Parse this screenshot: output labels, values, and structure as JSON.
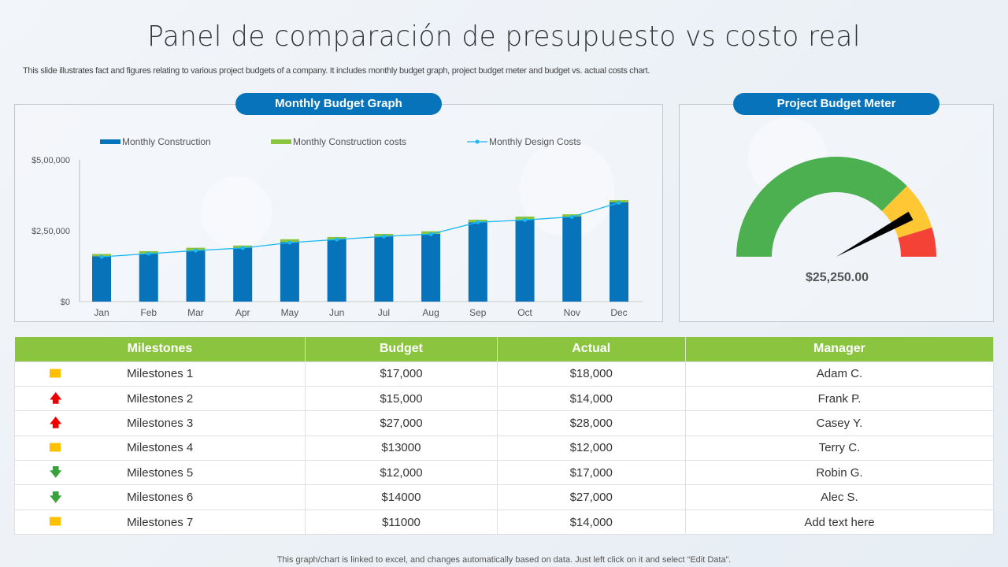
{
  "title": "Panel de comparación de presupuesto vs costo real",
  "subtitle": "This slide illustrates fact and figures relating to various project budgets of a company. It includes monthly budget graph, project budget meter and budget vs.  actual costs chart.",
  "budget_graph": {
    "header": "Monthly Budget Graph"
  },
  "meter": {
    "header": "Project Budget Meter",
    "value_label": "$25,250.00",
    "needle_fraction": 0.84,
    "colors": {
      "green": "#4caf50",
      "yellow": "#ffc733",
      "red": "#f44336"
    }
  },
  "chart_data": {
    "type": "bar",
    "categories": [
      "Jan",
      "Feb",
      "Mar",
      "Apr",
      "May",
      "Jun",
      "Jul",
      "Aug",
      "Sep",
      "Oct",
      "Nov",
      "Dec"
    ],
    "y_ticks": [
      "$0",
      "$2,50,000",
      "$5,00,000"
    ],
    "ylim": [
      0,
      500000
    ],
    "legend_position": "top",
    "series": [
      {
        "name": "Monthly Construction",
        "kind": "stacked-bar",
        "color": "#0773bb",
        "values": [
          160000,
          169000,
          180000,
          190000,
          210000,
          220000,
          230000,
          239000,
          280000,
          289000,
          300000,
          350000
        ]
      },
      {
        "name": "Monthly Construction costs",
        "kind": "stacked-bar",
        "color": "#8bc53f",
        "values": [
          8000,
          9000,
          10000,
          8000,
          10000,
          8000,
          9000,
          9000,
          9000,
          11000,
          8000,
          8000
        ]
      },
      {
        "name": "Monthly Design Costs",
        "kind": "line",
        "color": "#1ab8f0",
        "values": [
          158000,
          169000,
          180000,
          189000,
          208000,
          219000,
          230000,
          238000,
          280000,
          288000,
          299000,
          349000
        ]
      }
    ]
  },
  "table": {
    "headers": [
      "Milestones",
      "Budget",
      "Actual",
      "Manager"
    ],
    "rows": [
      {
        "icon": "square",
        "name": "Milestones 1",
        "budget": "$17,000",
        "actual": "$18,000",
        "manager": "Adam C."
      },
      {
        "icon": "arrow-up",
        "name": "Milestones 2",
        "budget": "$15,000",
        "actual": "$14,000",
        "manager": "Frank P."
      },
      {
        "icon": "arrow-up",
        "name": "Milestones 3",
        "budget": "$27,000",
        "actual": "$28,000",
        "manager": "Casey Y."
      },
      {
        "icon": "square",
        "name": "Milestones 4",
        "budget": "$13000",
        "actual": "$12,000",
        "manager": "Terry C."
      },
      {
        "icon": "arrow-down",
        "name": "Milestones 5",
        "budget": "$12,000",
        "actual": "$17,000",
        "manager": "Robin G."
      },
      {
        "icon": "arrow-down",
        "name": "Milestones 6",
        "budget": "$14000",
        "actual": "$27,000",
        "manager": "Alec S."
      },
      {
        "icon": "square",
        "name": "Milestones 7",
        "budget": "$11000",
        "actual": "$14,000",
        "manager": "Add text here"
      }
    ]
  },
  "footer": "This graph/chart is linked to excel, and changes automatically based on data. Just left click on it and select “Edit Data”."
}
